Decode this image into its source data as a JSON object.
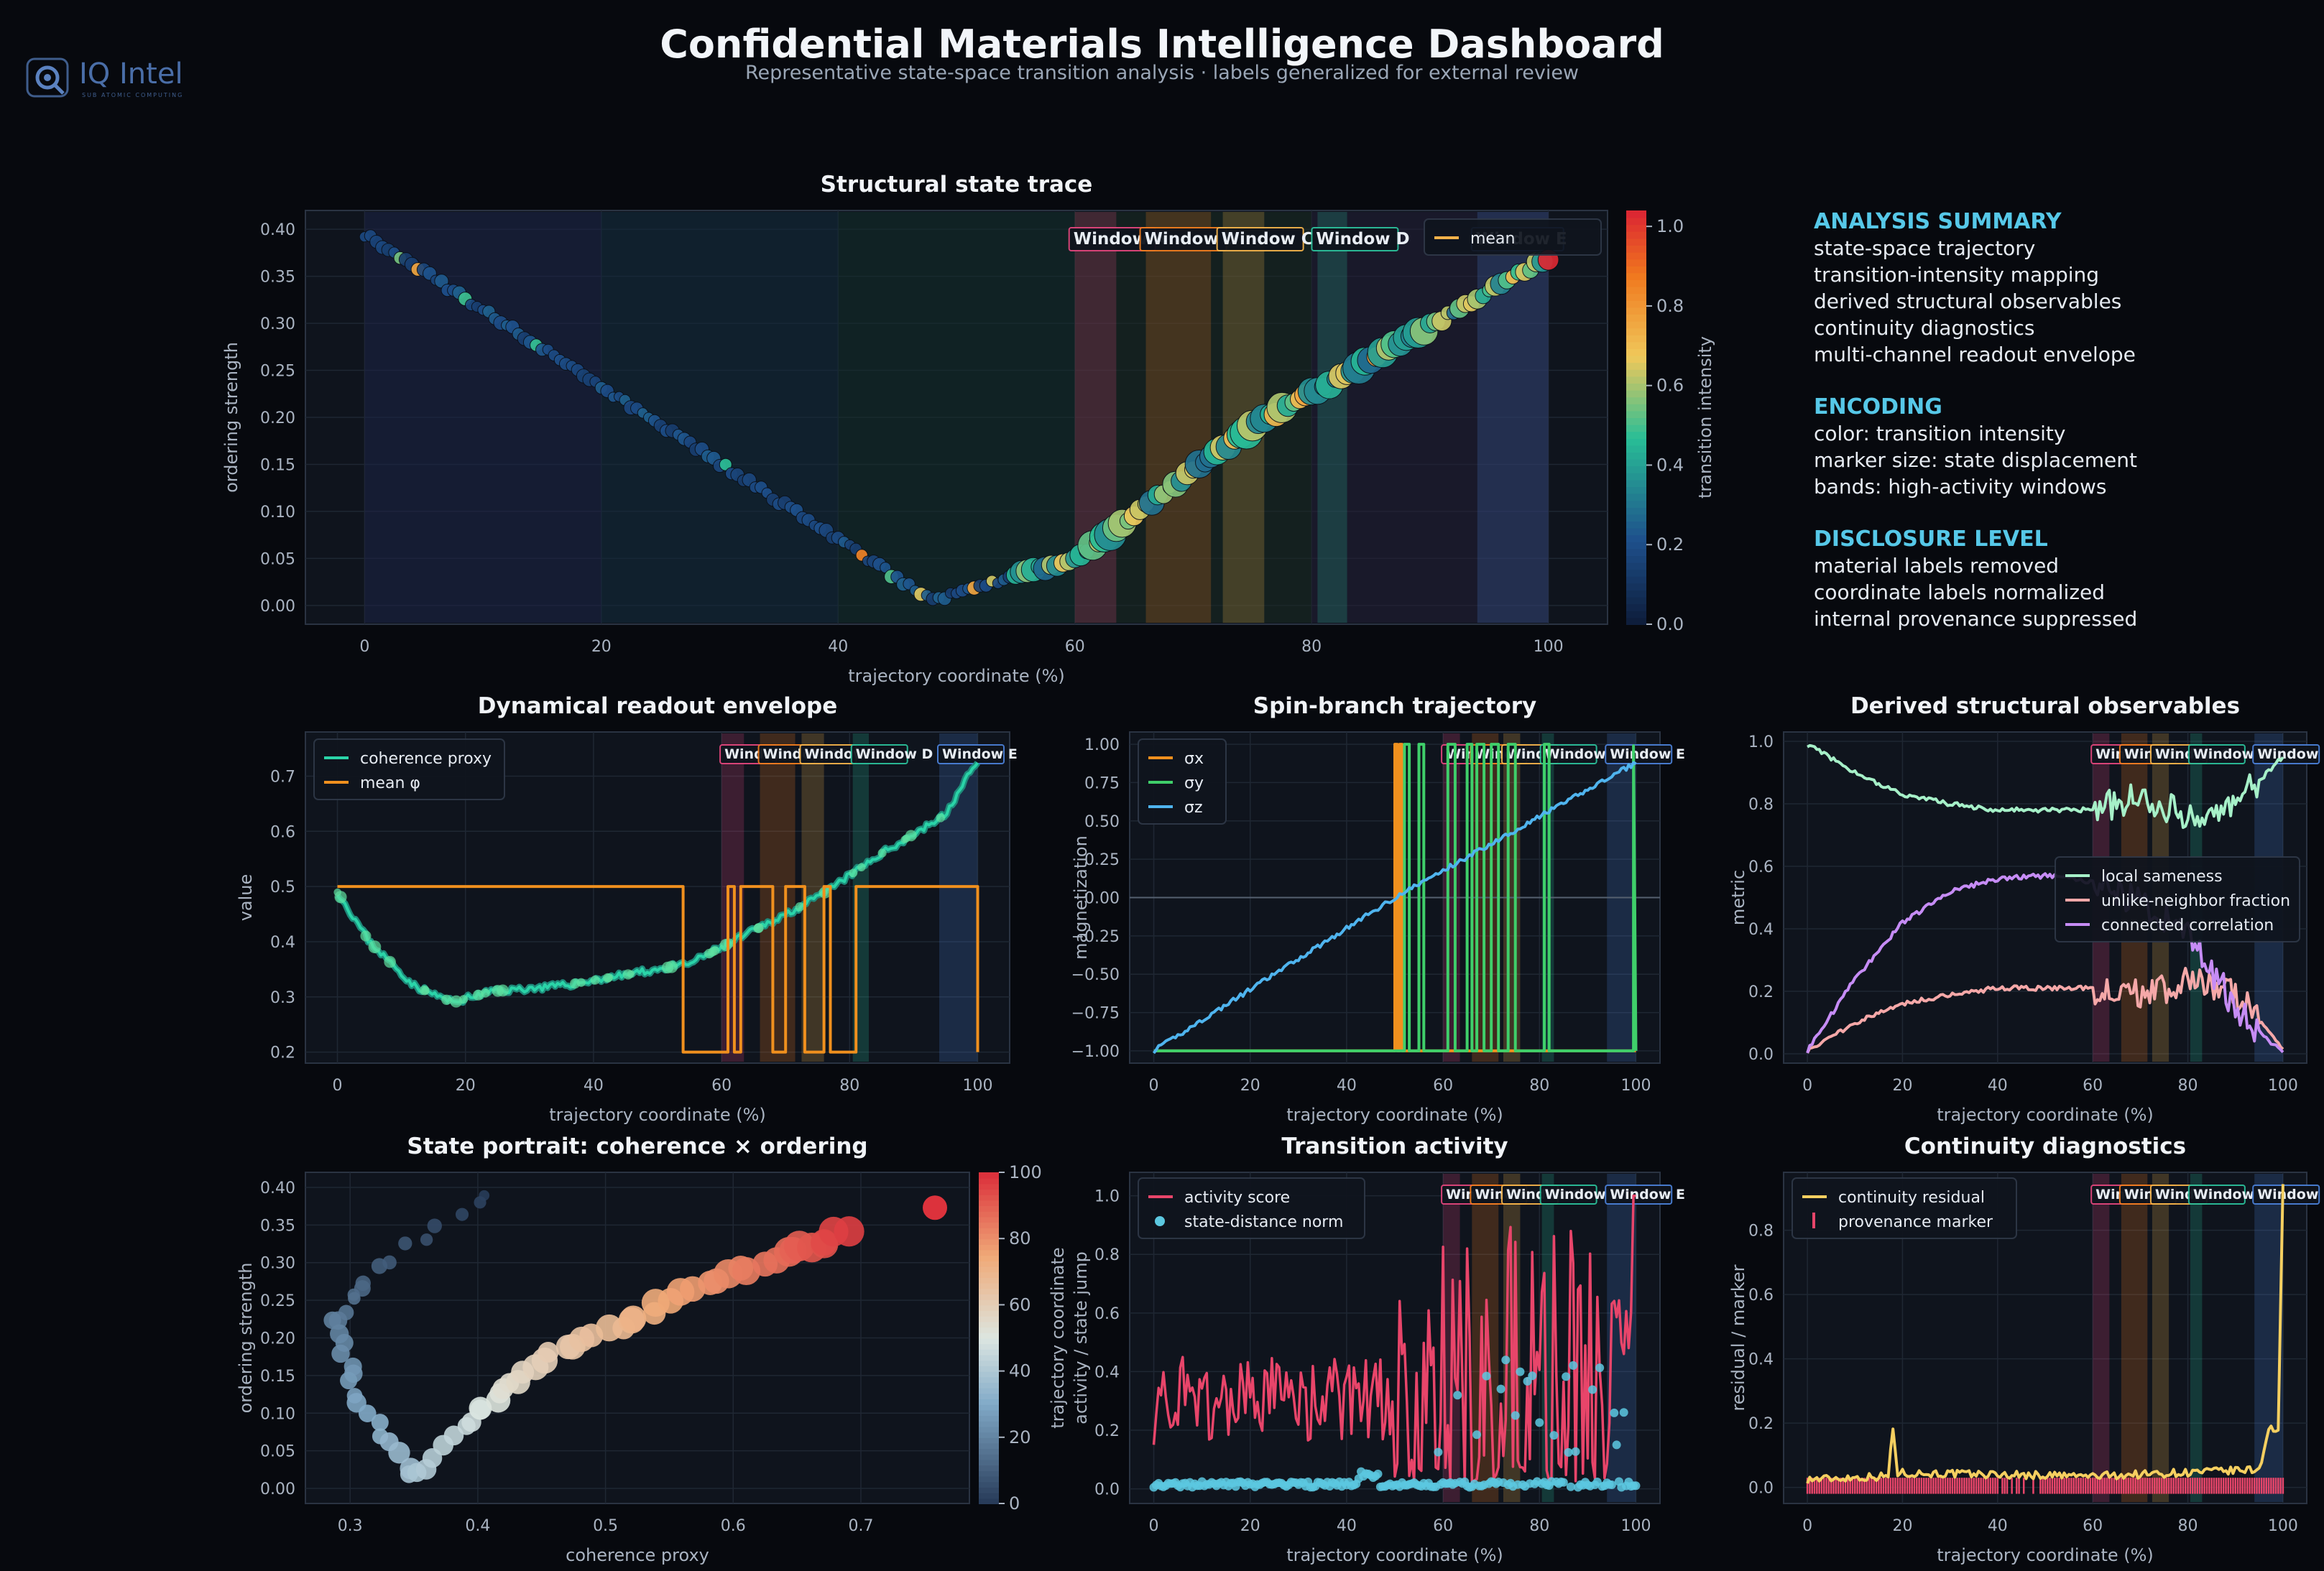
{
  "header": {
    "title": "Confidential Materials Intelligence Dashboard",
    "subtitle": "Representative state-space transition analysis · labels generalized for external review"
  },
  "logo": {
    "name": "IQ Intel",
    "tagline": "SUB ATOMIC COMPUTING"
  },
  "summary": [
    {
      "title": "ANALYSIS SUMMARY",
      "items": [
        "state-space trajectory",
        "transition-intensity mapping",
        "derived structural observables",
        "continuity diagnostics",
        "multi-channel readout envelope"
      ]
    },
    {
      "title": "ENCODING",
      "items": [
        "color: transition intensity",
        "marker size: state displacement",
        "bands: high-activity windows"
      ]
    },
    {
      "title": "DISCLOSURE LEVEL",
      "items": [
        "material labels removed",
        "coordinate labels normalized",
        "internal provenance suppressed"
      ]
    }
  ],
  "colors": {
    "background": "#07090e",
    "panel": "#0f141d",
    "accent": "#56c8e8",
    "window_a": "#e0457b",
    "window_b": "#f07d1e",
    "window_c": "#f2b24a",
    "window_d": "#2bbf9a",
    "window_e": "#4a7fd6"
  },
  "windows": [
    {
      "label": "Window A",
      "x0": 60,
      "x1": 63.5
    },
    {
      "label": "Window B",
      "x0": 66,
      "x1": 71.5
    },
    {
      "label": "Window C",
      "x0": 72.5,
      "x1": 76
    },
    {
      "label": "Window D",
      "x0": 80.5,
      "x1": 83
    },
    {
      "label": "Window E",
      "x0": 94,
      "x1": 100
    }
  ],
  "chart_data": [
    {
      "id": "structural",
      "type": "scatter",
      "title": "Structural state trace",
      "xlabel": "trajectory coordinate (%)",
      "ylabel": "ordering strength",
      "colorbar_label": "transition intensity",
      "xlim": [
        -5,
        105
      ],
      "ylim": [
        -0.02,
        0.42
      ],
      "x_ticks": [
        "0",
        "20",
        "40",
        "60",
        "80",
        "100"
      ],
      "y_ticks": [
        "0.00",
        "0.05",
        "0.10",
        "0.15",
        "0.20",
        "0.25",
        "0.30",
        "0.35",
        "0.40"
      ],
      "colorbar_ticks": [
        "0.0",
        "0.2",
        "0.4",
        "0.6",
        "0.8",
        "1.0"
      ],
      "legend": [
        "mean"
      ],
      "legend_position": "top-right",
      "keypoints": [
        [
          0,
          0.395
        ],
        [
          48,
          0.005
        ],
        [
          60,
          0.05
        ],
        [
          75,
          0.19
        ],
        [
          100,
          0.37
        ]
      ]
    },
    {
      "id": "readout",
      "type": "line",
      "title": "Dynamical readout envelope",
      "xlabel": "trajectory coordinate (%)",
      "ylabel": "value",
      "xlim": [
        -5,
        105
      ],
      "ylim": [
        0.18,
        0.78
      ],
      "x_ticks": [
        "0",
        "20",
        "40",
        "60",
        "80",
        "100"
      ],
      "y_ticks": [
        "0.2",
        "0.3",
        "0.4",
        "0.5",
        "0.6",
        "0.7"
      ],
      "series": [
        {
          "name": "coherence proxy",
          "points": [
            [
              0,
              0.49
            ],
            [
              5,
              0.4
            ],
            [
              12,
              0.32
            ],
            [
              18,
              0.29
            ],
            [
              24,
              0.31
            ],
            [
              35,
              0.32
            ],
            [
              45,
              0.34
            ],
            [
              55,
              0.36
            ],
            [
              65,
              0.42
            ],
            [
              75,
              0.48
            ],
            [
              85,
              0.56
            ],
            [
              95,
              0.63
            ],
            [
              100,
              0.73
            ]
          ]
        },
        {
          "name": "mean φ",
          "steps": [
            [
              0,
              0.5
            ],
            [
              53,
              0.5
            ],
            [
              54,
              0.2
            ],
            [
              60,
              0.2
            ],
            [
              61,
              0.5
            ],
            [
              62,
              0.2
            ],
            [
              63,
              0.5
            ],
            [
              67,
              0.5
            ],
            [
              68,
              0.2
            ],
            [
              70,
              0.5
            ],
            [
              73,
              0.2
            ],
            [
              76,
              0.5
            ],
            [
              77,
              0.2
            ],
            [
              80,
              0.2
            ],
            [
              81,
              0.5
            ],
            [
              99,
              0.5
            ],
            [
              100,
              0.2
            ]
          ]
        }
      ],
      "legend_position": "top-left"
    },
    {
      "id": "spin",
      "type": "line",
      "title": "Spin-branch trajectory",
      "xlabel": "trajectory coordinate (%)",
      "ylabel": "magnetization",
      "xlim": [
        -5,
        105
      ],
      "ylim": [
        -1.08,
        1.08
      ],
      "x_ticks": [
        "0",
        "20",
        "40",
        "60",
        "80",
        "100"
      ],
      "y_ticks": [
        "−1.00",
        "−0.75",
        "−0.50",
        "−0.25",
        "0.00",
        "0.25",
        "0.50",
        "0.75",
        "1.00"
      ],
      "series": [
        {
          "name": "σx"
        },
        {
          "name": "σy"
        },
        {
          "name": "σz",
          "points": [
            [
              0,
              -1
            ],
            [
              50,
              0
            ],
            [
              100,
              0.88
            ]
          ]
        }
      ],
      "legend_position": "top-left"
    },
    {
      "id": "derived",
      "type": "line",
      "title": "Derived structural observables",
      "xlabel": "trajectory coordinate (%)",
      "ylabel": "metric",
      "xlim": [
        -5,
        105
      ],
      "ylim": [
        -0.03,
        1.03
      ],
      "x_ticks": [
        "0",
        "20",
        "40",
        "60",
        "80",
        "100"
      ],
      "y_ticks": [
        "0.0",
        "0.2",
        "0.4",
        "0.6",
        "0.8",
        "1.0"
      ],
      "series": [
        {
          "name": "local sameness",
          "points": [
            [
              0,
              0.99
            ],
            [
              10,
              0.9
            ],
            [
              20,
              0.83
            ],
            [
              30,
              0.8
            ],
            [
              40,
              0.78
            ],
            [
              50,
              0.78
            ],
            [
              60,
              0.78
            ],
            [
              70,
              0.82
            ],
            [
              80,
              0.76
            ],
            [
              90,
              0.8
            ],
            [
              100,
              0.95
            ]
          ]
        },
        {
          "name": "unlike-neighbor fraction",
          "points": [
            [
              0,
              0.01
            ],
            [
              10,
              0.1
            ],
            [
              20,
              0.16
            ],
            [
              30,
              0.19
            ],
            [
              40,
              0.21
            ],
            [
              50,
              0.21
            ],
            [
              60,
              0.21
            ],
            [
              70,
              0.19
            ],
            [
              80,
              0.23
            ],
            [
              90,
              0.19
            ],
            [
              100,
              0.02
            ]
          ]
        },
        {
          "name": "connected correlation",
          "points": [
            [
              0,
              0.01
            ],
            [
              10,
              0.24
            ],
            [
              20,
              0.42
            ],
            [
              30,
              0.52
            ],
            [
              40,
              0.56
            ],
            [
              50,
              0.57
            ],
            [
              60,
              0.55
            ],
            [
              70,
              0.48
            ],
            [
              80,
              0.38
            ],
            [
              90,
              0.15
            ],
            [
              100,
              0.0
            ]
          ]
        }
      ],
      "legend_position": "right"
    },
    {
      "id": "portrait",
      "type": "scatter",
      "title": "State portrait: coherence × ordering",
      "xlabel": "coherence proxy",
      "ylabel": "ordering strength",
      "colorbar_label": "trajectory coordinate",
      "xlim": [
        0.265,
        0.785
      ],
      "ylim": [
        -0.02,
        0.42
      ],
      "x_ticks": [
        "0.3",
        "0.4",
        "0.5",
        "0.6",
        "0.7"
      ],
      "y_ticks": [
        "0.00",
        "0.05",
        "0.10",
        "0.15",
        "0.20",
        "0.25",
        "0.30",
        "0.35",
        "0.40"
      ],
      "colorbar_ticks": [
        "0",
        "20",
        "40",
        "60",
        "80",
        "100"
      ]
    },
    {
      "id": "activity",
      "type": "line",
      "title": "Transition activity",
      "xlabel": "trajectory coordinate (%)",
      "ylabel": "activity / state jump",
      "xlim": [
        -5,
        105
      ],
      "ylim": [
        -0.05,
        1.08
      ],
      "x_ticks": [
        "0",
        "20",
        "40",
        "60",
        "80",
        "100"
      ],
      "y_ticks": [
        "0.0",
        "0.2",
        "0.4",
        "0.6",
        "0.8",
        "1.0"
      ],
      "series": [
        {
          "name": "activity score"
        },
        {
          "name": "state-distance norm"
        }
      ],
      "legend_position": "top-left"
    },
    {
      "id": "continuity",
      "type": "line",
      "title": "Continuity diagnostics",
      "xlabel": "trajectory coordinate (%)",
      "ylabel": "residual / marker",
      "xlim": [
        -5,
        105
      ],
      "ylim": [
        -0.05,
        0.98
      ],
      "x_ticks": [
        "0",
        "20",
        "40",
        "60",
        "80",
        "100"
      ],
      "y_ticks": [
        "0.0",
        "0.2",
        "0.4",
        "0.6",
        "0.8"
      ],
      "series": [
        {
          "name": "continuity residual",
          "points": [
            [
              0,
              0.02
            ],
            [
              17,
              0.03
            ],
            [
              18,
              0.18
            ],
            [
              19,
              0.04
            ],
            [
              60,
              0.03
            ],
            [
              95,
              0.05
            ],
            [
              97,
              0.18
            ],
            [
              99,
              0.17
            ],
            [
              100,
              0.93
            ]
          ]
        },
        {
          "name": "provenance marker"
        }
      ],
      "legend_position": "top-left"
    }
  ]
}
